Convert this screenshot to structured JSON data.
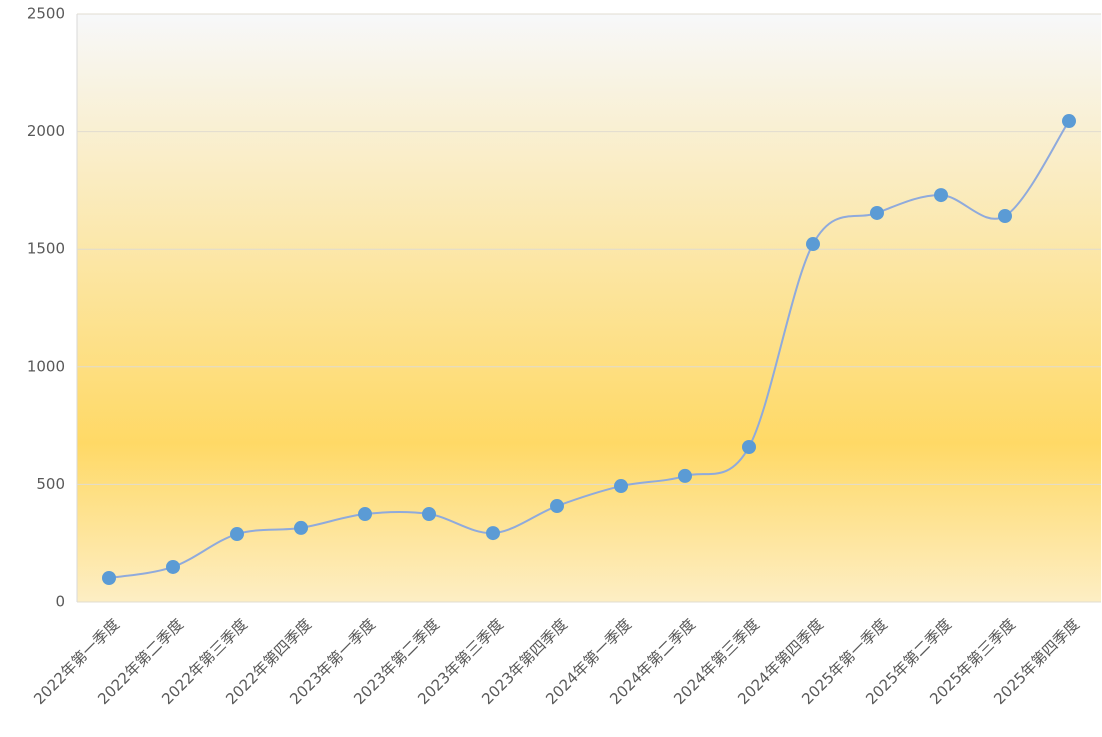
{
  "chart_data": {
    "type": "line",
    "categories": [
      "2022年第一季度",
      "2022年第二季度",
      "2022年第三季度",
      "2022年第四季度",
      "2023年第一季度",
      "2023年第二季度",
      "2023年第三季度",
      "2023年第四季度",
      "2024年第一季度",
      "2024年第二季度",
      "2024年第三季度",
      "2024年第四季度",
      "2025年第一季度",
      "2025年第二季度",
      "2025年第三季度",
      "2025年第四季度"
    ],
    "values": [
      102,
      149,
      289,
      315,
      374,
      374,
      293,
      408,
      493,
      536,
      659,
      1522,
      1654,
      1730,
      1641,
      2045
    ],
    "color": "#8faadc",
    "marker_color": "#5b9bd5",
    "smooth": true,
    "ylim": [
      0,
      2500
    ],
    "yticks": [
      0,
      500,
      1000,
      1500,
      2000,
      2500
    ],
    "grid": true
  }
}
